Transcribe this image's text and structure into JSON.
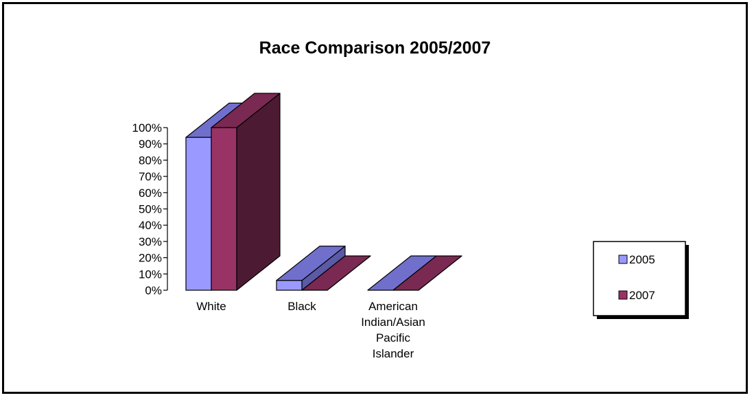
{
  "chart_data": {
    "type": "bar",
    "title": "Race Comparison 2005/2007",
    "xlabel": "",
    "ylabel": "",
    "ylim": [
      0,
      100
    ],
    "y_ticks": [
      "0%",
      "10%",
      "20%",
      "30%",
      "40%",
      "50%",
      "60%",
      "70%",
      "80%",
      "90%",
      "100%"
    ],
    "categories": [
      [
        "White"
      ],
      [
        "Black"
      ],
      [
        "American",
        "Indian/Asian",
        "Pacific",
        "Islander"
      ]
    ],
    "series": [
      {
        "name": "2005",
        "values": [
          94,
          6,
          0
        ],
        "color": "#9999ff",
        "top_color": "#7070cc",
        "side_color": "#5a5aa6"
      },
      {
        "name": "2007",
        "values": [
          100,
          0,
          0
        ],
        "color": "#993366",
        "top_color": "#7a2952",
        "side_color": "#4d1a33"
      }
    ],
    "legend_position": "right",
    "grid": false
  }
}
